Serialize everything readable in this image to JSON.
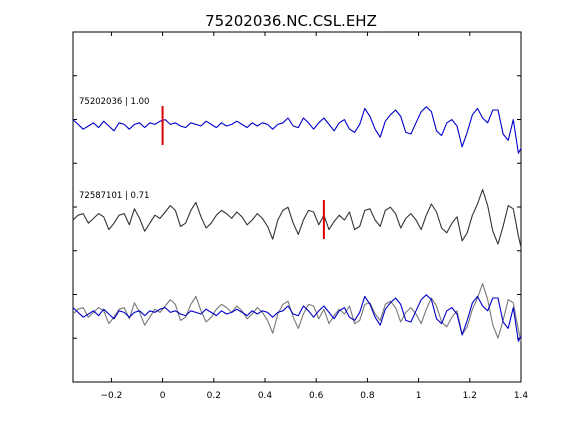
{
  "chart_data": {
    "type": "line",
    "title": "75202036.NC.CSL.EHZ",
    "xlabel": "",
    "ylabel": "",
    "xlim": [
      -0.35,
      1.4
    ],
    "xticks": [
      -0.2,
      0,
      0.2,
      0.4,
      0.6,
      0.8,
      1,
      1.2,
      1.4
    ],
    "xtick_labels": [
      "−0.2",
      "0",
      "0.2",
      "0.4",
      "0.6",
      "0.8",
      "1",
      "1.2",
      "1.4"
    ],
    "grid": false,
    "colors": {
      "master": "#0000cc",
      "other": "#333333",
      "overlay_other": "#777777",
      "pick": "#dd0000"
    },
    "traces": [
      {
        "label": "75202036 | 1.00",
        "pick_time": 0.0,
        "color": "master",
        "x": [
          -0.35,
          -0.33,
          -0.31,
          -0.29,
          -0.27,
          -0.25,
          -0.23,
          -0.21,
          -0.19,
          -0.17,
          -0.15,
          -0.13,
          -0.11,
          -0.09,
          -0.07,
          -0.05,
          -0.03,
          -0.01,
          0.01,
          0.03,
          0.05,
          0.07,
          0.09,
          0.11,
          0.13,
          0.15,
          0.17,
          0.19,
          0.21,
          0.23,
          0.25,
          0.27,
          0.29,
          0.31,
          0.33,
          0.35,
          0.37,
          0.39,
          0.41,
          0.43,
          0.45,
          0.47,
          0.49,
          0.51,
          0.53,
          0.55,
          0.57,
          0.59,
          0.61,
          0.63,
          0.65,
          0.67,
          0.69,
          0.71,
          0.73,
          0.75,
          0.77,
          0.79,
          0.81,
          0.83,
          0.85,
          0.87,
          0.89,
          0.91,
          0.93,
          0.95,
          0.97,
          0.99,
          1.01,
          1.03,
          1.05,
          1.07,
          1.09,
          1.11,
          1.13,
          1.15,
          1.17,
          1.19,
          1.21,
          1.23,
          1.25,
          1.27,
          1.29,
          1.31,
          1.33,
          1.35,
          1.37,
          1.39,
          1.4
        ],
        "y": [
          0.2,
          0.05,
          -0.1,
          0.0,
          0.1,
          -0.05,
          0.15,
          0.0,
          -0.15,
          0.1,
          0.05,
          -0.1,
          0.05,
          0.1,
          -0.05,
          0.1,
          0.05,
          0.15,
          0.2,
          0.05,
          0.1,
          0.0,
          -0.05,
          0.1,
          0.05,
          0.0,
          0.15,
          0.05,
          -0.05,
          0.1,
          0.0,
          0.05,
          0.15,
          0.05,
          -0.05,
          0.1,
          0.0,
          0.1,
          0.05,
          -0.1,
          0.05,
          0.1,
          0.25,
          0.0,
          -0.05,
          0.25,
          0.1,
          -0.1,
          0.1,
          0.25,
          0.05,
          -0.15,
          0.1,
          0.2,
          -0.1,
          -0.2,
          0.05,
          0.55,
          0.3,
          -0.1,
          -0.35,
          0.15,
          0.35,
          0.5,
          0.3,
          -0.2,
          -0.25,
          0.1,
          0.45,
          0.6,
          0.45,
          -0.15,
          -0.3,
          0.1,
          0.2,
          0.0,
          -0.65,
          -0.2,
          0.35,
          0.55,
          0.25,
          0.1,
          0.5,
          0.5,
          -0.25,
          -0.45,
          0.2,
          -0.85,
          -0.7
        ]
      },
      {
        "label": "72587101 | 0.71",
        "pick_time": 0.63,
        "color": "other",
        "x": [
          -0.35,
          -0.33,
          -0.31,
          -0.29,
          -0.27,
          -0.25,
          -0.23,
          -0.21,
          -0.19,
          -0.17,
          -0.15,
          -0.13,
          -0.11,
          -0.09,
          -0.07,
          -0.05,
          -0.03,
          -0.01,
          0.01,
          0.03,
          0.05,
          0.07,
          0.09,
          0.11,
          0.13,
          0.15,
          0.17,
          0.19,
          0.21,
          0.23,
          0.25,
          0.27,
          0.29,
          0.31,
          0.33,
          0.35,
          0.37,
          0.39,
          0.41,
          0.43,
          0.45,
          0.47,
          0.49,
          0.51,
          0.53,
          0.55,
          0.57,
          0.59,
          0.61,
          0.63,
          0.65,
          0.67,
          0.69,
          0.71,
          0.73,
          0.75,
          0.77,
          0.79,
          0.81,
          0.83,
          0.85,
          0.87,
          0.89,
          0.91,
          0.93,
          0.95,
          0.97,
          0.99,
          1.01,
          1.03,
          1.05,
          1.07,
          1.09,
          1.11,
          1.13,
          1.15,
          1.17,
          1.19,
          1.21,
          1.23,
          1.25,
          1.27,
          1.29,
          1.31,
          1.33,
          1.35,
          1.37,
          1.39,
          1.4
        ],
        "y": [
          0.0,
          0.15,
          0.2,
          -0.1,
          0.05,
          0.2,
          0.1,
          -0.3,
          -0.1,
          0.15,
          0.2,
          -0.15,
          0.35,
          0.05,
          -0.35,
          -0.1,
          0.15,
          0.05,
          0.25,
          0.45,
          0.3,
          -0.2,
          -0.1,
          0.3,
          0.55,
          0.1,
          -0.25,
          -0.1,
          0.15,
          0.3,
          0.2,
          0.05,
          0.25,
          0.1,
          -0.15,
          0.0,
          0.2,
          0.05,
          -0.2,
          -0.6,
          0.0,
          0.3,
          0.4,
          -0.1,
          -0.45,
          0.0,
          0.3,
          0.25,
          -0.15,
          0.15,
          -0.3,
          -0.05,
          0.15,
          0.0,
          0.25,
          -0.3,
          -0.2,
          0.3,
          0.35,
          0.0,
          -0.2,
          0.3,
          0.4,
          0.2,
          -0.25,
          0.05,
          0.2,
          0.0,
          -0.3,
          0.15,
          0.5,
          0.25,
          -0.25,
          -0.4,
          -0.1,
          0.1,
          -0.65,
          -0.4,
          0.15,
          0.5,
          0.95,
          0.45,
          -0.35,
          -0.75,
          -0.2,
          0.45,
          0.35,
          -0.5,
          -0.85
        ]
      }
    ],
    "overlay": {
      "traces": [
        "75202036 | 1.00",
        "72587101 | 0.71"
      ],
      "colors": [
        "master",
        "overlay_other"
      ]
    }
  }
}
